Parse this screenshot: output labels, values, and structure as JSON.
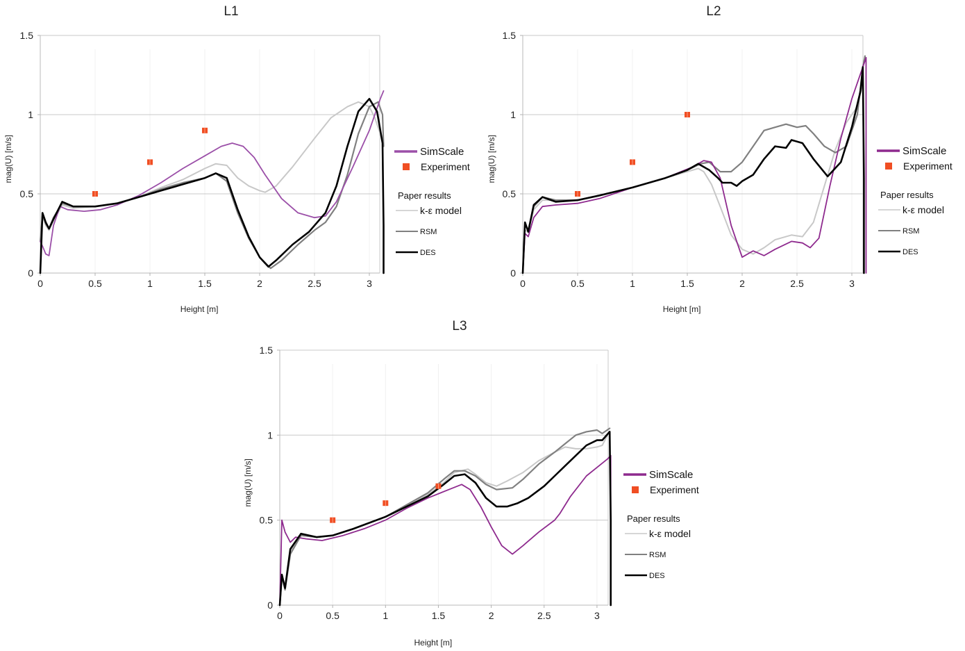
{
  "chart_data": [
    {
      "type": "line",
      "title": "L1",
      "xlabel": "Height [m]",
      "ylabel": "mag(U) [m/s]",
      "xlim": [
        0,
        3.1
      ],
      "ylim": [
        0,
        1.5
      ],
      "xticks": [
        "0",
        "0.5",
        "1",
        "1.5",
        "2",
        "2.5",
        "3"
      ],
      "yticks": [
        "0",
        "0.5",
        "1",
        "1.5"
      ],
      "grid": true,
      "legend": {
        "placement": "right",
        "simscale": "SimScale",
        "experiment": "Experiment",
        "group_title": "Paper results",
        "ke": "k-ε model",
        "rsm": "RSM",
        "des": "DES"
      },
      "series": [
        {
          "name": "SimScale",
          "color": "#9b4fa8",
          "x": [
            0,
            0.02,
            0.05,
            0.08,
            0.12,
            0.18,
            0.25,
            0.4,
            0.55,
            0.7,
            0.9,
            1.1,
            1.3,
            1.5,
            1.65,
            1.75,
            1.85,
            1.95,
            2.05,
            2.2,
            2.35,
            2.5,
            2.6,
            2.7,
            2.85,
            3.0,
            3.1,
            3.13
          ],
          "y": [
            0.2,
            0.17,
            0.12,
            0.11,
            0.3,
            0.42,
            0.4,
            0.39,
            0.4,
            0.43,
            0.49,
            0.57,
            0.66,
            0.74,
            0.8,
            0.82,
            0.8,
            0.73,
            0.62,
            0.47,
            0.38,
            0.35,
            0.36,
            0.45,
            0.67,
            0.9,
            1.1,
            1.15
          ]
        },
        {
          "name": "k-ε model",
          "color": "#c8c8c8",
          "x": [
            0,
            0.02,
            0.05,
            0.08,
            0.12,
            0.2,
            0.3,
            0.5,
            0.7,
            0.9,
            1.1,
            1.3,
            1.5,
            1.6,
            1.7,
            1.8,
            1.9,
            2.0,
            2.05,
            2.15,
            2.3,
            2.5,
            2.65,
            2.8,
            2.9,
            3.0,
            3.05,
            3.1,
            3.13
          ],
          "y": [
            0.2,
            0.36,
            0.3,
            0.27,
            0.33,
            0.43,
            0.41,
            0.42,
            0.44,
            0.48,
            0.54,
            0.59,
            0.66,
            0.69,
            0.68,
            0.6,
            0.55,
            0.52,
            0.51,
            0.55,
            0.67,
            0.85,
            0.98,
            1.05,
            1.08,
            1.05,
            0.98,
            0.88,
            0.8
          ]
        },
        {
          "name": "RSM",
          "color": "#808080",
          "x": [
            0,
            0.02,
            0.05,
            0.08,
            0.12,
            0.2,
            0.3,
            0.5,
            0.7,
            0.9,
            1.1,
            1.3,
            1.5,
            1.6,
            1.7,
            1.8,
            1.9,
            2.0,
            2.1,
            2.2,
            2.35,
            2.5,
            2.6,
            2.7,
            2.8,
            2.9,
            3.0,
            3.08,
            3.12,
            3.13
          ],
          "y": [
            0.2,
            0.37,
            0.31,
            0.28,
            0.35,
            0.44,
            0.42,
            0.42,
            0.44,
            0.48,
            0.53,
            0.57,
            0.6,
            0.63,
            0.58,
            0.38,
            0.22,
            0.1,
            0.03,
            0.08,
            0.18,
            0.27,
            0.32,
            0.42,
            0.62,
            0.88,
            1.05,
            1.08,
            1.0,
            0.8
          ]
        },
        {
          "name": "DES",
          "color": "#000000",
          "x": [
            0,
            0.02,
            0.05,
            0.08,
            0.12,
            0.2,
            0.3,
            0.5,
            0.7,
            0.9,
            1.1,
            1.3,
            1.5,
            1.6,
            1.7,
            1.8,
            1.9,
            2.0,
            2.08,
            2.15,
            2.3,
            2.45,
            2.6,
            2.7,
            2.8,
            2.9,
            3.0,
            3.07,
            3.12,
            3.13,
            3.13
          ],
          "y": [
            0,
            0.38,
            0.32,
            0.28,
            0.34,
            0.45,
            0.42,
            0.42,
            0.44,
            0.48,
            0.52,
            0.56,
            0.6,
            0.63,
            0.6,
            0.4,
            0.23,
            0.1,
            0.04,
            0.08,
            0.18,
            0.26,
            0.38,
            0.55,
            0.8,
            1.02,
            1.1,
            1.02,
            0.82,
            0.3,
            0
          ]
        }
      ],
      "experiment": {
        "name": "Experiment",
        "color": "#f04e23",
        "x": [
          0.5,
          1.0,
          1.5
        ],
        "y": [
          0.5,
          0.7,
          0.9
        ]
      }
    },
    {
      "type": "line",
      "title": "L2",
      "xlabel": "Height [m]",
      "ylabel": "mag(U) [m/s]",
      "xlim": [
        0,
        3.1
      ],
      "ylim": [
        0,
        1.5
      ],
      "xticks": [
        "0",
        "0.5",
        "1",
        "1.5",
        "2",
        "2.5",
        "3"
      ],
      "yticks": [
        "0",
        "0.5",
        "1",
        "1.5"
      ],
      "grid": true,
      "legend": {
        "placement": "right",
        "simscale": "SimScale",
        "experiment": "Experiment",
        "group_title": "Paper results",
        "ke": "k-ε model",
        "rsm": "RSM",
        "des": "DES"
      },
      "series": [
        {
          "name": "SimScale",
          "color": "#8e2a8e",
          "x": [
            0,
            0.02,
            0.05,
            0.1,
            0.18,
            0.3,
            0.5,
            0.7,
            1.0,
            1.3,
            1.55,
            1.65,
            1.72,
            1.8,
            1.9,
            2.0,
            2.05,
            2.1,
            2.2,
            2.3,
            2.45,
            2.55,
            2.62,
            2.7,
            2.8,
            2.9,
            3.0,
            3.1,
            3.13,
            3.13
          ],
          "y": [
            0,
            0.25,
            0.23,
            0.35,
            0.42,
            0.43,
            0.44,
            0.47,
            0.54,
            0.6,
            0.67,
            0.71,
            0.7,
            0.6,
            0.3,
            0.1,
            0.12,
            0.14,
            0.11,
            0.15,
            0.2,
            0.19,
            0.16,
            0.22,
            0.55,
            0.85,
            1.1,
            1.3,
            1.36,
            0
          ]
        },
        {
          "name": "k-ε model",
          "color": "#c8c8c8",
          "x": [
            0,
            0.02,
            0.05,
            0.1,
            0.18,
            0.3,
            0.5,
            0.7,
            1.0,
            1.3,
            1.5,
            1.6,
            1.65,
            1.72,
            1.8,
            1.9,
            2.0,
            2.1,
            2.2,
            2.3,
            2.45,
            2.55,
            2.65,
            2.75,
            2.85,
            2.95,
            3.05,
            3.1
          ],
          "y": [
            0,
            0.27,
            0.26,
            0.4,
            0.46,
            0.46,
            0.46,
            0.49,
            0.54,
            0.6,
            0.64,
            0.66,
            0.64,
            0.56,
            0.42,
            0.24,
            0.15,
            0.12,
            0.16,
            0.21,
            0.24,
            0.23,
            0.32,
            0.55,
            0.78,
            0.95,
            1.05,
            1.2
          ]
        },
        {
          "name": "RSM",
          "color": "#808080",
          "x": [
            0,
            0.02,
            0.05,
            0.1,
            0.18,
            0.3,
            0.5,
            0.7,
            1.0,
            1.3,
            1.5,
            1.62,
            1.7,
            1.8,
            1.9,
            2.0,
            2.1,
            2.2,
            2.3,
            2.4,
            2.5,
            2.58,
            2.65,
            2.75,
            2.85,
            2.95,
            3.05,
            3.1,
            3.12
          ],
          "y": [
            0,
            0.31,
            0.27,
            0.42,
            0.48,
            0.46,
            0.46,
            0.49,
            0.54,
            0.6,
            0.65,
            0.69,
            0.7,
            0.64,
            0.64,
            0.7,
            0.8,
            0.9,
            0.92,
            0.94,
            0.92,
            0.93,
            0.88,
            0.8,
            0.76,
            0.8,
            1.0,
            1.3,
            1.37
          ]
        },
        {
          "name": "DES",
          "color": "#000000",
          "x": [
            0,
            0.02,
            0.05,
            0.1,
            0.18,
            0.3,
            0.5,
            0.7,
            1.0,
            1.3,
            1.5,
            1.6,
            1.7,
            1.78,
            1.82,
            1.9,
            1.95,
            2.0,
            2.1,
            2.2,
            2.3,
            2.4,
            2.45,
            2.55,
            2.65,
            2.78,
            2.9,
            3.0,
            3.08,
            3.1,
            3.11,
            3.11
          ],
          "y": [
            0,
            0.32,
            0.26,
            0.43,
            0.48,
            0.45,
            0.46,
            0.49,
            0.54,
            0.6,
            0.65,
            0.69,
            0.65,
            0.6,
            0.57,
            0.57,
            0.55,
            0.58,
            0.62,
            0.72,
            0.8,
            0.79,
            0.84,
            0.82,
            0.72,
            0.61,
            0.7,
            0.92,
            1.15,
            1.3,
            0.6,
            0
          ]
        }
      ],
      "experiment": {
        "name": "Experiment",
        "color": "#f04e23",
        "x": [
          0.5,
          1.0,
          1.5
        ],
        "y": [
          0.5,
          0.7,
          1.0
        ]
      }
    },
    {
      "type": "line",
      "title": "L3",
      "xlabel": "Height [m]",
      "ylabel": "mag(U) [m/s]",
      "xlim": [
        0,
        3.1
      ],
      "ylim": [
        0,
        1.5
      ],
      "xticks": [
        "0",
        "0.5",
        "1",
        "1.5",
        "2",
        "2.5",
        "3"
      ],
      "yticks": [
        "0",
        "0.5",
        "1",
        "1.5"
      ],
      "grid": true,
      "legend": {
        "placement": "right",
        "simscale": "SimScale",
        "experiment": "Experiment",
        "group_title": "Paper results",
        "ke": "k-ε model",
        "rsm": "RSM",
        "des": "DES"
      },
      "series": [
        {
          "name": "SimScale",
          "color": "#8e2a8e",
          "x": [
            0,
            0.02,
            0.05,
            0.1,
            0.15,
            0.25,
            0.4,
            0.6,
            0.8,
            1.0,
            1.2,
            1.4,
            1.6,
            1.72,
            1.8,
            1.9,
            2.0,
            2.1,
            2.2,
            2.3,
            2.45,
            2.6,
            2.65,
            2.75,
            2.9,
            3.0,
            3.1,
            3.13,
            3.13
          ],
          "y": [
            0,
            0.5,
            0.43,
            0.37,
            0.4,
            0.39,
            0.38,
            0.41,
            0.45,
            0.5,
            0.57,
            0.63,
            0.68,
            0.71,
            0.68,
            0.58,
            0.46,
            0.35,
            0.3,
            0.35,
            0.43,
            0.5,
            0.54,
            0.64,
            0.76,
            0.81,
            0.86,
            0.88,
            0
          ]
        },
        {
          "name": "k-ε model",
          "color": "#c8c8c8",
          "x": [
            0,
            0.02,
            0.05,
            0.1,
            0.2,
            0.35,
            0.5,
            0.7,
            1.0,
            1.2,
            1.4,
            1.55,
            1.65,
            1.78,
            1.85,
            1.95,
            2.05,
            2.15,
            2.3,
            2.45,
            2.6,
            2.7,
            2.8,
            2.9,
            3.0,
            3.05,
            3.1
          ],
          "y": [
            0,
            0.16,
            0.11,
            0.32,
            0.41,
            0.4,
            0.41,
            0.45,
            0.52,
            0.58,
            0.65,
            0.72,
            0.78,
            0.8,
            0.77,
            0.72,
            0.7,
            0.73,
            0.78,
            0.85,
            0.9,
            0.93,
            0.92,
            0.92,
            0.93,
            0.94,
            1.0
          ]
        },
        {
          "name": "RSM",
          "color": "#808080",
          "x": [
            0,
            0.02,
            0.05,
            0.1,
            0.2,
            0.35,
            0.5,
            0.7,
            1.0,
            1.2,
            1.4,
            1.55,
            1.65,
            1.75,
            1.85,
            1.95,
            2.05,
            2.2,
            2.3,
            2.45,
            2.6,
            2.7,
            2.8,
            2.9,
            3.0,
            3.05,
            3.12
          ],
          "y": [
            0,
            0.17,
            0.09,
            0.3,
            0.41,
            0.4,
            0.41,
            0.45,
            0.52,
            0.59,
            0.66,
            0.74,
            0.79,
            0.79,
            0.76,
            0.71,
            0.68,
            0.69,
            0.74,
            0.83,
            0.9,
            0.95,
            1.0,
            1.02,
            1.03,
            1.01,
            1.04
          ]
        },
        {
          "name": "DES",
          "color": "#000000",
          "x": [
            0,
            0.02,
            0.05,
            0.1,
            0.2,
            0.35,
            0.5,
            0.7,
            1.0,
            1.2,
            1.4,
            1.55,
            1.65,
            1.75,
            1.85,
            1.95,
            2.05,
            2.15,
            2.25,
            2.35,
            2.5,
            2.6,
            2.7,
            2.8,
            2.9,
            3.0,
            3.05,
            3.12,
            3.13,
            3.13
          ],
          "y": [
            0,
            0.18,
            0.1,
            0.33,
            0.42,
            0.4,
            0.41,
            0.45,
            0.52,
            0.58,
            0.64,
            0.71,
            0.76,
            0.77,
            0.72,
            0.63,
            0.58,
            0.58,
            0.6,
            0.63,
            0.7,
            0.76,
            0.82,
            0.88,
            0.94,
            0.97,
            0.97,
            1.02,
            0.5,
            0
          ]
        }
      ],
      "experiment": {
        "name": "Experiment",
        "color": "#f04e23",
        "x": [
          0.5,
          1.0,
          1.5
        ],
        "y": [
          0.5,
          0.6,
          0.7
        ]
      }
    }
  ]
}
